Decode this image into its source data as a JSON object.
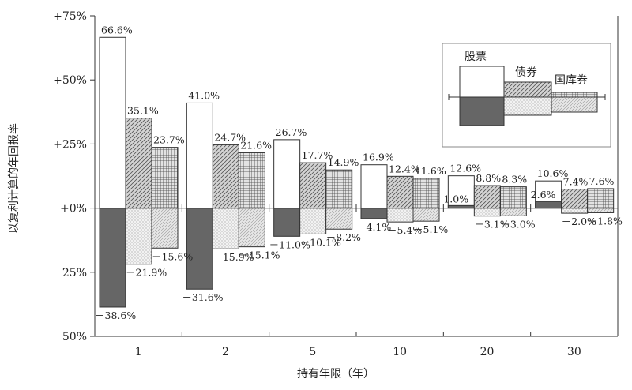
{
  "chart_data": {
    "type": "bar",
    "xlabel": "持有年限（年）",
    "ylabel": "以复利计算的年回报率",
    "ylim": [
      -50,
      75
    ],
    "ytick_values": [
      75,
      50,
      25,
      0,
      -25,
      -50
    ],
    "ytick_labels": [
      "+75%",
      "+50%",
      "+25%",
      "+0%",
      "－25%",
      "－50%"
    ],
    "categories": [
      "1",
      "2",
      "5",
      "10",
      "20",
      "30"
    ],
    "series": [
      {
        "name": "股票",
        "max": [
          66.6,
          41.0,
          26.7,
          16.9,
          12.6,
          10.6
        ],
        "min": [
          -38.6,
          -31.6,
          -11.0,
          -4.1,
          1.0,
          2.6
        ],
        "max_labels": [
          "66.6%",
          "41.0%",
          "26.7%",
          "16.9%",
          "12.6%",
          "10.6%"
        ],
        "min_labels": [
          "－38.6%",
          "－31.6%",
          "－11.0%",
          "－4.1%",
          "1.0%",
          "2.6%"
        ]
      },
      {
        "name": "债券",
        "max": [
          35.1,
          24.7,
          17.7,
          12.4,
          8.8,
          7.4
        ],
        "min": [
          -21.9,
          -15.9,
          -10.1,
          -5.4,
          -3.1,
          -2.0
        ],
        "max_labels": [
          "35.1%",
          "24.7%",
          "17.7%",
          "12.4%",
          "8.8%",
          "7.4%"
        ],
        "min_labels": [
          "－21.9%",
          "－15.9%",
          "－10.1%",
          "－5.4%",
          "－3.1%",
          "－2.0%"
        ]
      },
      {
        "name": "国库券",
        "max": [
          23.7,
          21.6,
          14.9,
          11.6,
          8.3,
          7.6
        ],
        "min": [
          -15.6,
          -15.1,
          -8.2,
          -5.1,
          -3.0,
          -1.8
        ],
        "max_labels": [
          "23.7%",
          "21.6%",
          "14.9%",
          "11.6%",
          "8.3%",
          "7.6%"
        ],
        "min_labels": [
          "－15.6%",
          "－15.1%",
          "－8.2%",
          "－5.1%",
          "－3.0%",
          "－1.8%"
        ]
      }
    ],
    "legend_position": "top-right",
    "grid": false
  }
}
